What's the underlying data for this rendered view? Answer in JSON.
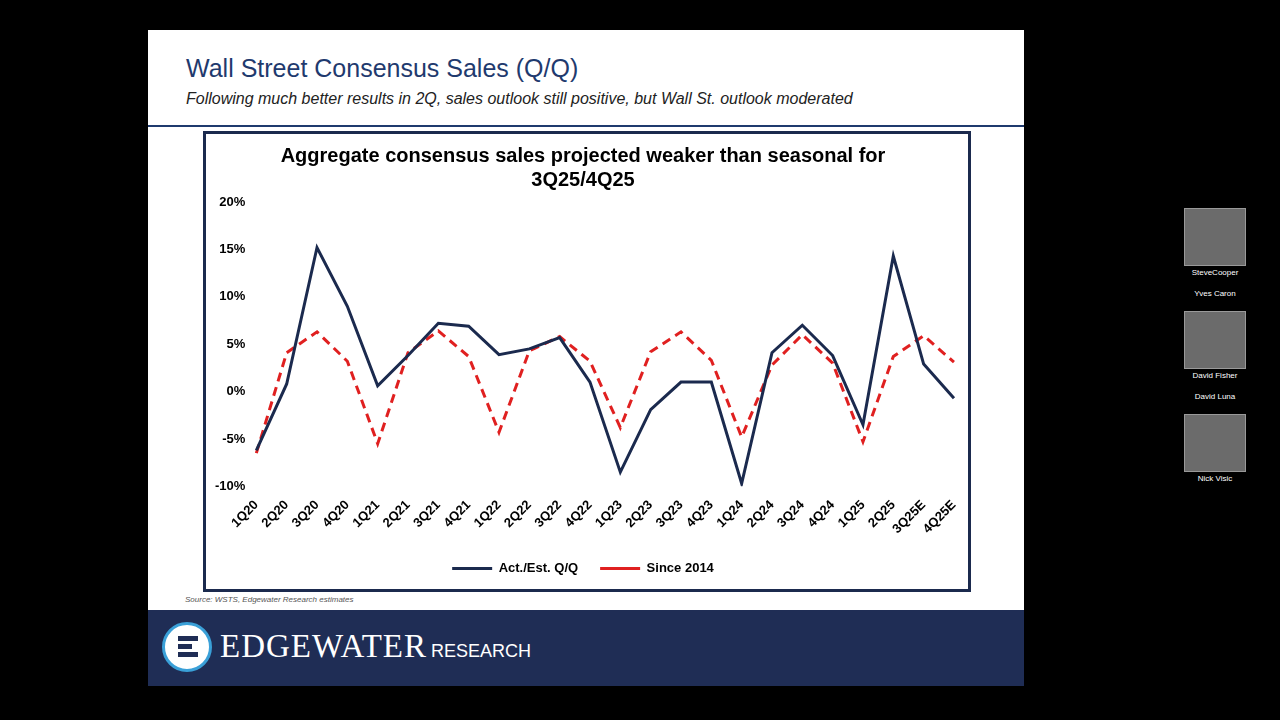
{
  "slide": {
    "title": "Wall Street Consensus Sales (Q/Q)",
    "subtitle": "Following much better results in 2Q, sales outlook still positive, but Wall St. outlook moderated",
    "source": "Source: WSTS, Edgewater Research estimates",
    "footer": {
      "brand": "EDGEWATER",
      "brand_suffix": "RESEARCH"
    }
  },
  "participants": [
    {
      "name": "SteveCooper",
      "video": true
    },
    {
      "name": "Yves Caron",
      "video": false
    },
    {
      "name": "David Fisher",
      "video": true
    },
    {
      "name": "David Luna",
      "video": false
    },
    {
      "name": "Nick Visic",
      "video": true
    }
  ],
  "chart_data": {
    "type": "line",
    "title": "Aggregate consensus sales projected weaker than seasonal for 3Q25/4Q25",
    "categories": [
      "1Q20",
      "2Q20",
      "3Q20",
      "4Q20",
      "1Q21",
      "2Q21",
      "3Q21",
      "4Q21",
      "1Q22",
      "2Q22",
      "3Q22",
      "4Q22",
      "1Q23",
      "2Q23",
      "3Q23",
      "4Q23",
      "1Q24",
      "2Q24",
      "3Q24",
      "4Q24",
      "1Q25",
      "2Q25",
      "3Q25E",
      "4Q25E"
    ],
    "series": [
      {
        "name": "Act./Est. Q/Q",
        "color": "#1b2a4e",
        "line_style": "solid",
        "marker": "none",
        "values": [
          -6.2,
          0.8,
          15.2,
          9.0,
          0.6,
          3.8,
          7.2,
          6.9,
          3.9,
          4.5,
          5.7,
          1.0,
          -8.5,
          -1.9,
          1.0,
          1.0,
          -9.7,
          4.1,
          7.0,
          3.8,
          -3.5,
          14.3,
          2.9,
          -0.7
        ]
      },
      {
        "name": "Since 2014",
        "color": "#e02020",
        "line_style": "dashed",
        "marker": "none",
        "values": [
          -6.5,
          4.1,
          6.3,
          3.2,
          -5.5,
          4.1,
          6.4,
          3.7,
          -4.3,
          4.3,
          5.8,
          3.2,
          -3.8,
          4.2,
          6.3,
          3.3,
          -4.8,
          2.8,
          6.0,
          3.0,
          -5.3,
          3.7,
          5.9,
          3.1
        ]
      }
    ],
    "ylim": [
      -10,
      20
    ],
    "yticks": [
      {
        "value": -10,
        "label": "-10%"
      },
      {
        "value": -5,
        "label": "-5%"
      },
      {
        "value": 0,
        "label": "0%"
      },
      {
        "value": 5,
        "label": "5%"
      },
      {
        "value": 10,
        "label": "10%"
      },
      {
        "value": 15,
        "label": "15%"
      },
      {
        "value": 20,
        "label": "20%"
      }
    ],
    "grid": false,
    "legend": "bottom"
  }
}
